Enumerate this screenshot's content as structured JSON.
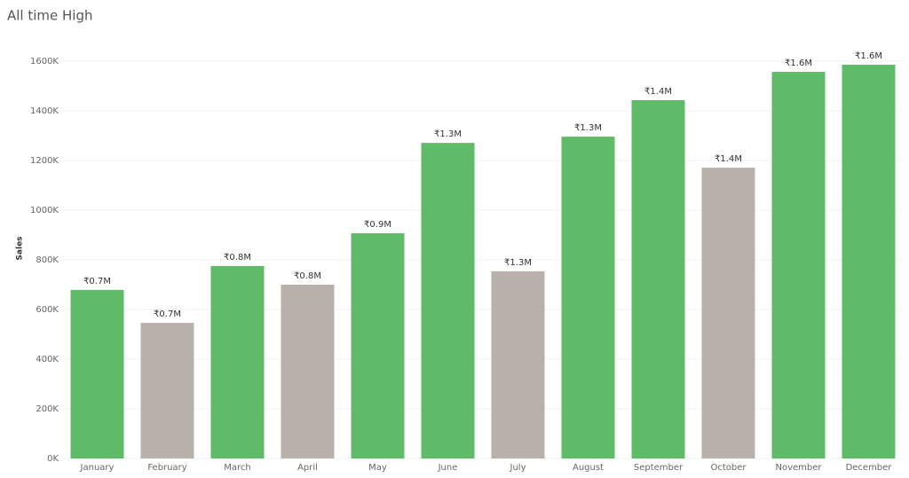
{
  "chart_data": {
    "type": "bar",
    "title": "All time High",
    "y_label": "Sales",
    "categories": [
      "January",
      "February",
      "March",
      "April",
      "May",
      "June",
      "July",
      "August",
      "September",
      "October",
      "November",
      "December"
    ],
    "values": [
      679000,
      546000,
      775000,
      700000,
      907000,
      1271000,
      754000,
      1296000,
      1443000,
      1171000,
      1557000,
      1586000
    ],
    "data_labels": {
      "values": [
        679000,
        679000,
        775000,
        775000,
        907000,
        1271000,
        1271000,
        1296000,
        1443000,
        1443000,
        1557000,
        1586000
      ],
      "value_labels": [
        "₹0.7M",
        "₹0.7M",
        "₹0.8M",
        "₹0.8M",
        "₹0.9M",
        "₹1.3M",
        "₹1.3M",
        "₹1.3M",
        "₹1.4M",
        "₹1.4M",
        "₹1.6M",
        "₹1.6M"
      ]
    },
    "color": "#5fbb68",
    "other_color": "#bab0ab",
    "ylim": [
      0,
      1700000
    ],
    "yticks": [
      {
        "value": 0,
        "label": "0K"
      },
      {
        "value": 200000,
        "label": "200K"
      },
      {
        "value": 400000,
        "label": "400K"
      },
      {
        "value": 600000,
        "label": "600K"
      },
      {
        "value": 800000,
        "label": "800K"
      },
      {
        "value": 1000000,
        "label": "1000K"
      },
      {
        "value": 1200000,
        "label": "1200K"
      },
      {
        "value": 1400000,
        "label": "1400K"
      },
      {
        "value": 1600000,
        "label": "1600K"
      }
    ],
    "grid": true
  }
}
